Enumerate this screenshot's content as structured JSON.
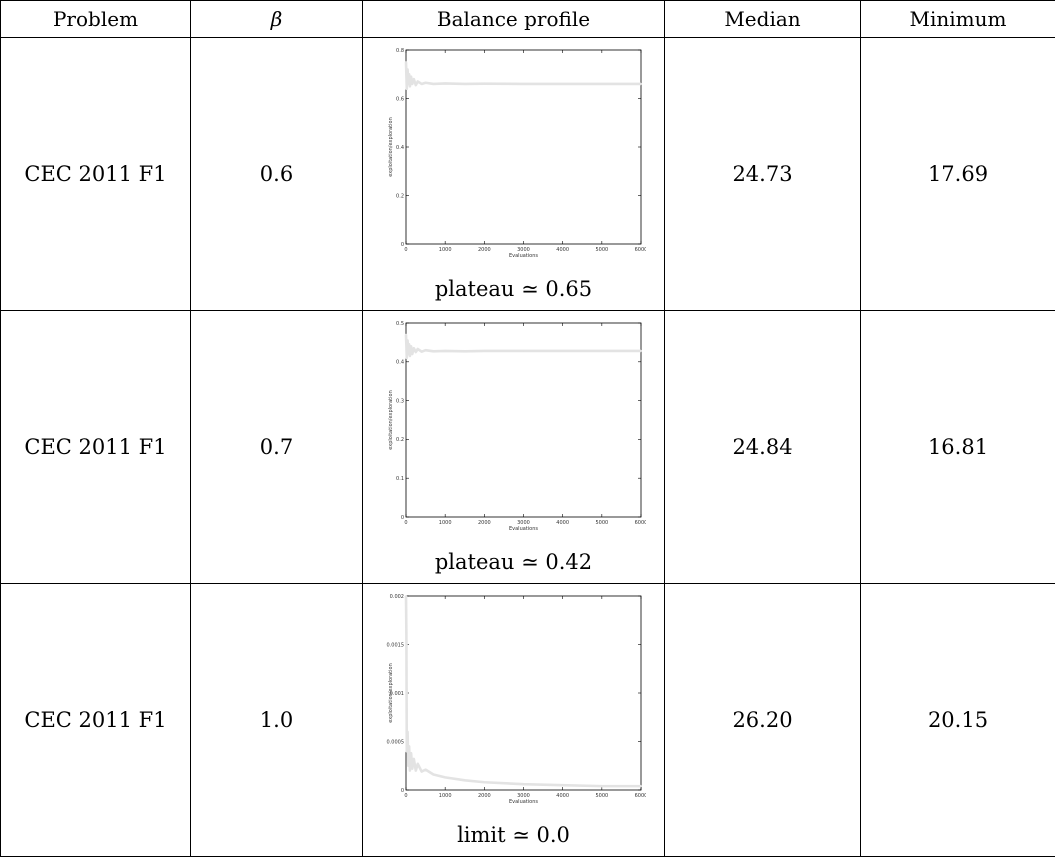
{
  "header": {
    "problem": "Problem",
    "beta": "β",
    "profile": "Balance profile",
    "median": "Median",
    "minimum": "Minimum"
  },
  "rows": [
    {
      "problem": "CEC 2011 F1",
      "beta": "0.6",
      "caption": "plateau ≃ 0.65",
      "median": "24.73",
      "minimum": "17.69"
    },
    {
      "problem": "CEC 2011 F1",
      "beta": "0.7",
      "caption": "plateau ≃ 0.42",
      "median": "24.84",
      "minimum": "16.81"
    },
    {
      "problem": "CEC 2011 F1",
      "beta": "1.0",
      "caption": "limit ≃ 0.0",
      "median": "26.20",
      "minimum": "20.15"
    }
  ],
  "chart_data": [
    {
      "type": "line",
      "xlabel": "Evaluations",
      "ylabel": "exploitation/exploration",
      "xlim": [
        0,
        6000
      ],
      "ylim": [
        0,
        0.8
      ],
      "xticks": [
        "0",
        "1000",
        "2000",
        "3000",
        "4000",
        "5000",
        "6000"
      ],
      "yticks": [
        "0",
        "0.2",
        "0.4",
        "0.6",
        "0.8"
      ],
      "series_color": "#e3e3e3",
      "x": [
        0,
        20,
        40,
        60,
        80,
        100,
        130,
        160,
        200,
        250,
        300,
        400,
        500,
        700,
        1000,
        1500,
        2000,
        3000,
        4000,
        5000,
        6000
      ],
      "y": [
        0.75,
        0.64,
        0.72,
        0.66,
        0.7,
        0.65,
        0.69,
        0.66,
        0.68,
        0.655,
        0.67,
        0.66,
        0.665,
        0.66,
        0.662,
        0.66,
        0.661,
        0.66,
        0.66,
        0.66,
        0.66
      ]
    },
    {
      "type": "line",
      "xlabel": "Evaluations",
      "ylabel": "exploitation/exploration",
      "xlim": [
        0,
        6000
      ],
      "ylim": [
        0,
        0.5
      ],
      "xticks": [
        "0",
        "1000",
        "2000",
        "3000",
        "4000",
        "5000",
        "6000"
      ],
      "yticks": [
        "0",
        "0.1",
        "0.2",
        "0.3",
        "0.4",
        "0.5"
      ],
      "series_color": "#e3e3e3",
      "x": [
        0,
        20,
        40,
        60,
        80,
        100,
        130,
        160,
        200,
        250,
        300,
        400,
        500,
        700,
        1000,
        1500,
        2000,
        3000,
        4000,
        5000,
        6000
      ],
      "y": [
        0.47,
        0.41,
        0.455,
        0.42,
        0.445,
        0.415,
        0.44,
        0.42,
        0.435,
        0.425,
        0.433,
        0.426,
        0.43,
        0.427,
        0.428,
        0.427,
        0.428,
        0.428,
        0.428,
        0.428,
        0.428
      ]
    },
    {
      "type": "line",
      "xlabel": "Evaluations",
      "ylabel": "exploitation/exploration",
      "xlim": [
        0,
        6000
      ],
      "ylim": [
        0,
        0.002
      ],
      "xticks": [
        "0",
        "1000",
        "2000",
        "3000",
        "4000",
        "5000",
        "6000"
      ],
      "yticks": [
        "0",
        "0.0005",
        "0.001",
        "0.0015",
        "0.002"
      ],
      "series_color": "#e3e3e3",
      "x": [
        0,
        10,
        20,
        40,
        60,
        80,
        100,
        130,
        160,
        200,
        250,
        300,
        400,
        500,
        700,
        1000,
        1500,
        2000,
        3000,
        4000,
        5000,
        6000
      ],
      "y": [
        0.002,
        0.0016,
        0.0004,
        0.0006,
        0.00025,
        0.00045,
        0.0002,
        0.00038,
        0.00022,
        0.00032,
        0.0002,
        0.00027,
        0.00019,
        0.00021,
        0.00016,
        0.00013,
        0.0001,
        8e-05,
        6e-05,
        5e-05,
        4e-05,
        4e-05
      ]
    }
  ]
}
